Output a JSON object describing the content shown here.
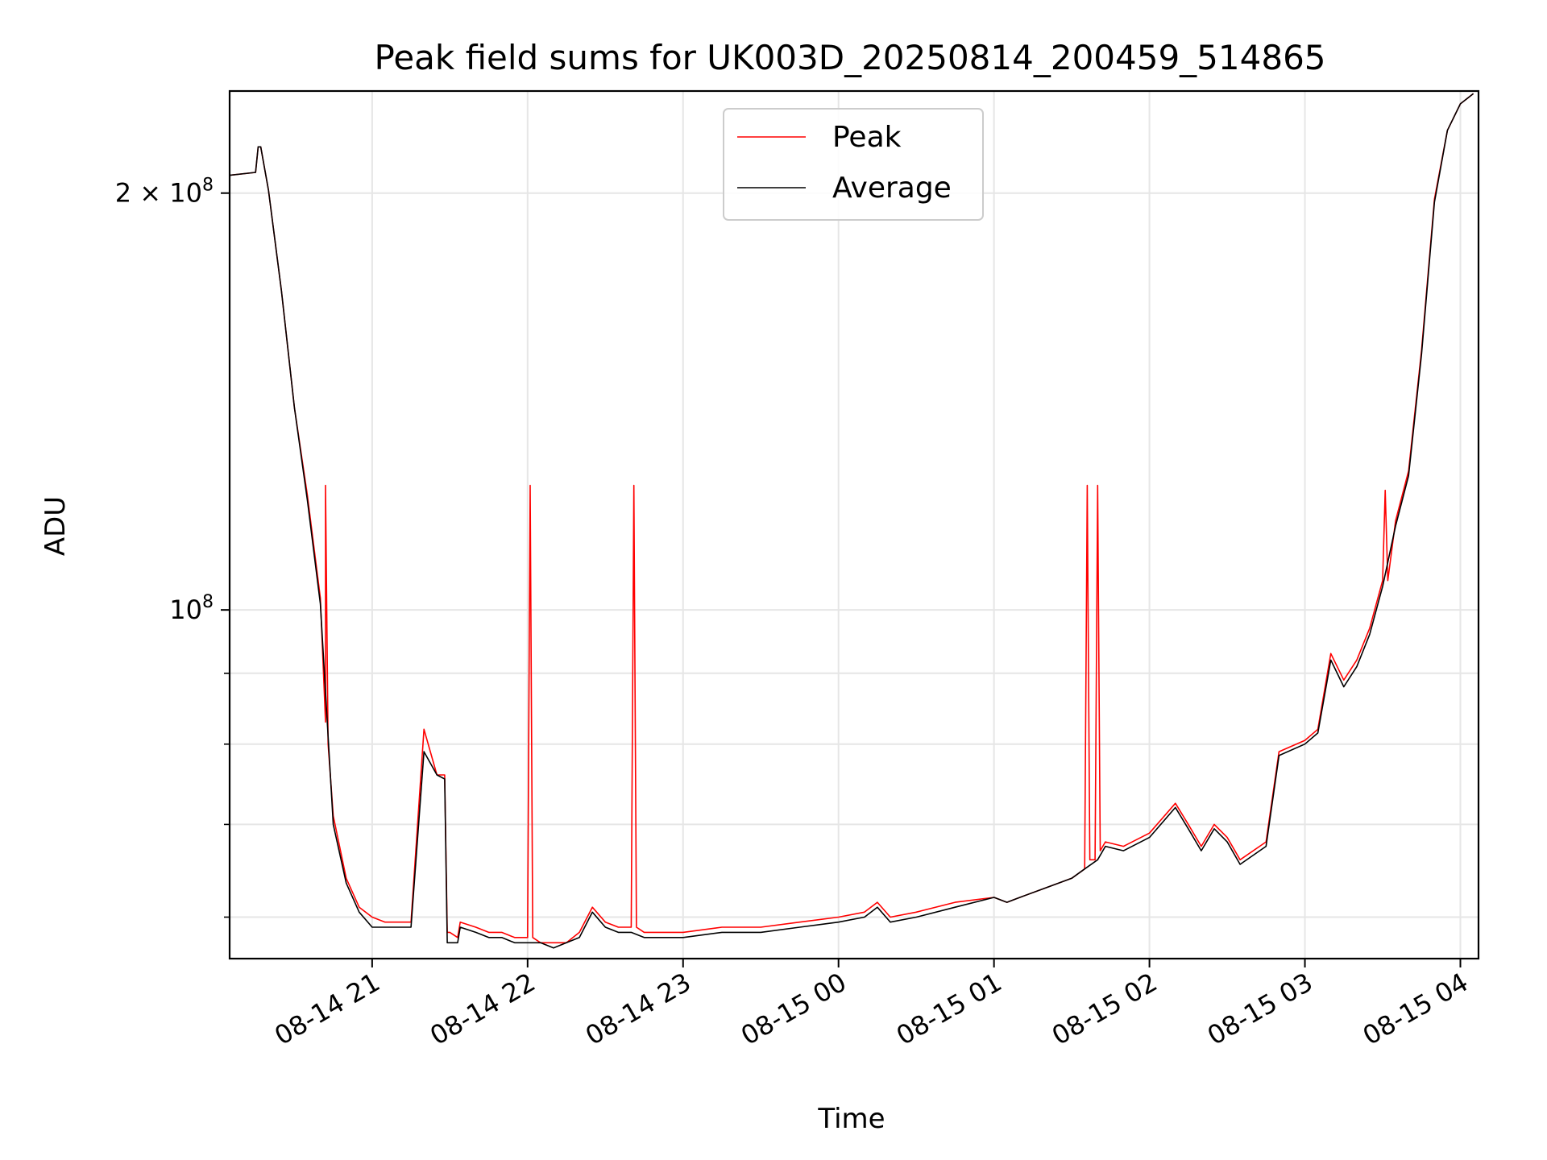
{
  "chart_data": {
    "type": "line",
    "title": "Peak field sums for UK003D_20250814_200459_514865",
    "xlabel": "Time",
    "ylabel": "ADU",
    "y_scale": "log",
    "ylim": [
      56000000,
      237000000
    ],
    "xlim": [
      "2025-08-14 20:05",
      "2025-08-15 04:07"
    ],
    "grid": true,
    "legend_position": "top-center",
    "x_ticks": [
      {
        "value": "2025-08-14 21:00",
        "label": "08-14 21"
      },
      {
        "value": "2025-08-14 22:00",
        "label": "08-14 22"
      },
      {
        "value": "2025-08-14 23:00",
        "label": "08-14 23"
      },
      {
        "value": "2025-08-15 00:00",
        "label": "08-15 00"
      },
      {
        "value": "2025-08-15 01:00",
        "label": "08-15 01"
      },
      {
        "value": "2025-08-15 02:00",
        "label": "08-15 02"
      },
      {
        "value": "2025-08-15 03:00",
        "label": "08-15 03"
      },
      {
        "value": "2025-08-15 04:00",
        "label": "08-15 04"
      }
    ],
    "y_ticks_major": [
      {
        "value": 100000000,
        "base": "10",
        "exp": "8"
      },
      {
        "value": 200000000,
        "mantissa": "2",
        "base": "10",
        "exp": "8"
      }
    ],
    "y_ticks_minor": [
      60000000,
      70000000,
      80000000,
      90000000
    ],
    "series": [
      {
        "name": "Peak",
        "color": "#ff0000",
        "x": [
          "2025-08-14 20:05",
          "2025-08-14 20:15",
          "2025-08-14 20:16",
          "2025-08-14 20:17",
          "2025-08-14 20:20",
          "2025-08-14 20:25",
          "2025-08-14 20:30",
          "2025-08-14 20:35",
          "2025-08-14 20:40",
          "2025-08-14 20:42",
          "2025-08-14 20:42",
          "2025-08-14 20:43",
          "2025-08-14 20:45",
          "2025-08-14 20:50",
          "2025-08-14 20:55",
          "2025-08-14 21:00",
          "2025-08-14 21:05",
          "2025-08-14 21:10",
          "2025-08-14 21:15",
          "2025-08-14 21:20",
          "2025-08-14 21:25",
          "2025-08-14 21:28",
          "2025-08-14 21:29",
          "2025-08-14 21:30",
          "2025-08-14 21:33",
          "2025-08-14 21:34",
          "2025-08-14 21:40",
          "2025-08-14 21:45",
          "2025-08-14 21:50",
          "2025-08-14 21:55",
          "2025-08-14 22:00",
          "2025-08-14 22:01",
          "2025-08-14 22:02",
          "2025-08-14 22:05",
          "2025-08-14 22:10",
          "2025-08-14 22:15",
          "2025-08-14 22:20",
          "2025-08-14 22:25",
          "2025-08-14 22:30",
          "2025-08-14 22:35",
          "2025-08-14 22:40",
          "2025-08-14 22:41",
          "2025-08-14 22:42",
          "2025-08-14 22:45",
          "2025-08-14 23:00",
          "2025-08-14 23:15",
          "2025-08-14 23:30",
          "2025-08-14 23:45",
          "2025-08-15 00:00",
          "2025-08-15 00:10",
          "2025-08-15 00:15",
          "2025-08-15 00:20",
          "2025-08-15 00:30",
          "2025-08-15 00:45",
          "2025-08-15 01:00",
          "2025-08-15 01:05",
          "2025-08-15 01:10",
          "2025-08-15 01:20",
          "2025-08-15 01:30",
          "2025-08-15 01:35",
          "2025-08-15 01:36",
          "2025-08-15 01:37",
          "2025-08-15 01:39",
          "2025-08-15 01:40",
          "2025-08-15 01:41",
          "2025-08-15 01:43",
          "2025-08-15 01:50",
          "2025-08-15 02:00",
          "2025-08-15 02:10",
          "2025-08-15 02:15",
          "2025-08-15 02:20",
          "2025-08-15 02:25",
          "2025-08-15 02:30",
          "2025-08-15 02:35",
          "2025-08-15 02:45",
          "2025-08-15 02:50",
          "2025-08-15 03:00",
          "2025-08-15 03:05",
          "2025-08-15 03:10",
          "2025-08-15 03:15",
          "2025-08-15 03:20",
          "2025-08-15 03:25",
          "2025-08-15 03:30",
          "2025-08-15 03:31",
          "2025-08-15 03:32",
          "2025-08-15 03:35",
          "2025-08-15 03:40",
          "2025-08-15 03:45",
          "2025-08-15 03:50",
          "2025-08-15 03:55",
          "2025-08-15 04:00",
          "2025-08-15 04:05"
        ],
        "y": [
          206000000,
          207000000,
          216000000,
          216000000,
          201000000,
          170000000,
          140000000,
          121000000,
          102000000,
          83000000,
          123000000,
          80000000,
          71000000,
          64000000,
          61000000,
          60000000,
          59500000,
          59500000,
          59500000,
          82000000,
          76000000,
          76000000,
          58500000,
          58500000,
          58000000,
          59500000,
          59000000,
          58500000,
          58500000,
          58000000,
          58000000,
          123000000,
          58000000,
          57500000,
          57500000,
          57500000,
          58500000,
          61000000,
          59500000,
          59000000,
          59000000,
          123000000,
          59000000,
          58500000,
          58500000,
          59000000,
          59000000,
          59500000,
          60000000,
          60500000,
          61500000,
          60000000,
          60500000,
          61500000,
          62000000,
          61500000,
          62000000,
          63000000,
          64000000,
          65000000,
          123000000,
          66000000,
          66000000,
          123000000,
          67000000,
          68000000,
          67500000,
          69000000,
          72500000,
          70000000,
          67500000,
          70000000,
          68500000,
          66000000,
          68000000,
          79000000,
          80500000,
          82000000,
          93000000,
          89000000,
          92000000,
          97000000,
          105000000,
          122000000,
          105000000,
          116000000,
          126000000,
          154000000,
          198000000,
          222000000,
          232000000,
          236000000
        ]
      },
      {
        "name": "Average",
        "color": "#000000",
        "x": [
          "2025-08-14 20:05",
          "2025-08-14 20:15",
          "2025-08-14 20:16",
          "2025-08-14 20:17",
          "2025-08-14 20:20",
          "2025-08-14 20:25",
          "2025-08-14 20:30",
          "2025-08-14 20:35",
          "2025-08-14 20:40",
          "2025-08-14 20:45",
          "2025-08-14 20:50",
          "2025-08-14 20:55",
          "2025-08-14 21:00",
          "2025-08-14 21:05",
          "2025-08-14 21:10",
          "2025-08-14 21:15",
          "2025-08-14 21:20",
          "2025-08-14 21:25",
          "2025-08-14 21:28",
          "2025-08-14 21:29",
          "2025-08-14 21:30",
          "2025-08-14 21:33",
          "2025-08-14 21:34",
          "2025-08-14 21:40",
          "2025-08-14 21:45",
          "2025-08-14 21:50",
          "2025-08-14 21:55",
          "2025-08-14 22:00",
          "2025-08-14 22:05",
          "2025-08-14 22:10",
          "2025-08-14 22:15",
          "2025-08-14 22:20",
          "2025-08-14 22:25",
          "2025-08-14 22:30",
          "2025-08-14 22:35",
          "2025-08-14 22:40",
          "2025-08-14 22:45",
          "2025-08-14 23:00",
          "2025-08-14 23:15",
          "2025-08-14 23:30",
          "2025-08-14 23:45",
          "2025-08-15 00:00",
          "2025-08-15 00:10",
          "2025-08-15 00:15",
          "2025-08-15 00:20",
          "2025-08-15 00:30",
          "2025-08-15 00:45",
          "2025-08-15 01:00",
          "2025-08-15 01:05",
          "2025-08-15 01:10",
          "2025-08-15 01:20",
          "2025-08-15 01:30",
          "2025-08-15 01:35",
          "2025-08-15 01:40",
          "2025-08-15 01:43",
          "2025-08-15 01:50",
          "2025-08-15 02:00",
          "2025-08-15 02:10",
          "2025-08-15 02:15",
          "2025-08-15 02:20",
          "2025-08-15 02:25",
          "2025-08-15 02:30",
          "2025-08-15 02:35",
          "2025-08-15 02:45",
          "2025-08-15 02:50",
          "2025-08-15 03:00",
          "2025-08-15 03:05",
          "2025-08-15 03:10",
          "2025-08-15 03:15",
          "2025-08-15 03:20",
          "2025-08-15 03:25",
          "2025-08-15 03:30",
          "2025-08-15 03:35",
          "2025-08-15 03:40",
          "2025-08-15 03:45",
          "2025-08-15 03:50",
          "2025-08-15 03:55",
          "2025-08-15 04:00",
          "2025-08-15 04:05"
        ],
        "y": [
          206000000,
          207000000,
          216000000,
          216000000,
          201000000,
          170000000,
          140000000,
          120000000,
          101000000,
          70000000,
          63500000,
          60500000,
          59000000,
          59000000,
          59000000,
          59000000,
          79000000,
          76000000,
          75500000,
          57500000,
          57500000,
          57500000,
          59000000,
          58500000,
          58000000,
          58000000,
          57500000,
          57500000,
          57500000,
          57000000,
          57500000,
          58000000,
          60500000,
          59000000,
          58500000,
          58500000,
          58000000,
          58000000,
          58500000,
          58500000,
          59000000,
          59500000,
          60000000,
          61000000,
          59500000,
          60000000,
          61000000,
          62000000,
          61500000,
          62000000,
          63000000,
          64000000,
          65000000,
          66000000,
          67500000,
          67000000,
          68500000,
          72000000,
          69500000,
          67000000,
          69500000,
          68000000,
          65500000,
          67500000,
          78500000,
          80000000,
          81500000,
          92000000,
          88000000,
          91000000,
          96000000,
          104000000,
          115000000,
          125000000,
          153000000,
          197000000,
          222000000,
          232000000,
          236000000
        ]
      }
    ]
  }
}
